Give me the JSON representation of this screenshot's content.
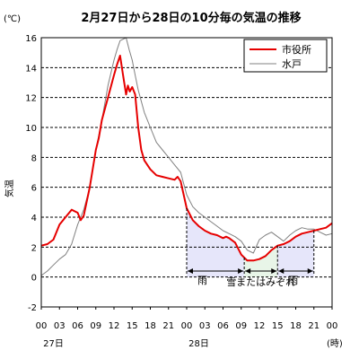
{
  "chart_data": {
    "type": "line",
    "title": "2月27日から28日の10分毎の気温の推移",
    "unit_label": "(℃)",
    "ylabel": "気温",
    "ylim": [
      -2,
      16
    ],
    "yticks": [
      -2,
      0,
      2,
      4,
      6,
      8,
      10,
      12,
      14,
      16
    ],
    "xlim": [
      0,
      48
    ],
    "xtick_values": [
      0,
      3,
      6,
      9,
      12,
      15,
      18,
      21,
      24,
      27,
      30,
      33,
      36,
      39,
      42,
      45,
      48
    ],
    "xtick_labels": [
      "00",
      "03",
      "06",
      "09",
      "12",
      "15",
      "18",
      "21",
      "00",
      "03",
      "06",
      "09",
      "12",
      "15",
      "18",
      "21",
      "00"
    ],
    "day_labels": [
      {
        "x": 2,
        "text": "27日"
      },
      {
        "x": 26,
        "text": "28日"
      }
    ],
    "x_unit_label": "(時)",
    "grid": "horizontal-dashed",
    "legend_position": "top-right",
    "series": [
      {
        "name": "市役所",
        "color": "#e60000",
        "x": [
          0,
          1,
          2,
          3,
          4,
          5,
          6,
          6.5,
          7,
          8,
          9,
          9.5,
          10,
          11,
          12,
          12.5,
          13,
          13.5,
          14,
          14.3,
          14.6,
          15,
          15.5,
          16,
          16.5,
          17,
          18,
          19,
          20,
          21,
          22,
          22.5,
          23,
          24,
          25,
          26,
          27,
          28,
          29,
          30,
          30.5,
          31,
          32,
          33,
          34,
          35,
          36,
          37,
          38,
          39,
          40,
          41,
          42,
          43,
          44,
          45,
          46,
          47,
          48
        ],
        "y": [
          2.1,
          2.2,
          2.5,
          3.5,
          4.0,
          4.5,
          4.3,
          3.8,
          4.1,
          6.0,
          8.5,
          9.3,
          10.5,
          12.0,
          13.5,
          14.2,
          14.8,
          13.5,
          12.2,
          12.8,
          12.4,
          12.7,
          12.2,
          10.0,
          8.5,
          7.8,
          7.2,
          6.8,
          6.7,
          6.6,
          6.5,
          6.7,
          6.4,
          4.6,
          3.8,
          3.4,
          3.1,
          2.9,
          2.8,
          2.6,
          2.7,
          2.6,
          2.3,
          1.5,
          1.1,
          1.1,
          1.2,
          1.4,
          1.8,
          2.1,
          2.2,
          2.4,
          2.7,
          2.9,
          3.0,
          3.1,
          3.2,
          3.3,
          3.6
        ]
      },
      {
        "name": "水戸",
        "color": "#808080",
        "x": [
          0,
          1,
          2,
          3,
          4,
          5,
          6,
          7,
          8,
          9,
          10,
          11,
          12,
          12.5,
          13,
          14,
          14.5,
          15,
          15.5,
          16,
          17,
          18,
          19,
          20,
          21,
          22,
          23,
          24,
          25,
          26,
          27,
          28,
          29,
          30,
          31,
          32,
          33,
          34,
          35,
          36,
          37,
          38,
          39,
          40,
          41,
          42,
          43,
          44,
          45,
          46,
          47,
          48
        ],
        "y": [
          0.1,
          0.4,
          0.8,
          1.2,
          1.5,
          2.2,
          3.5,
          4.5,
          6.0,
          8.5,
          10.5,
          12.8,
          14.5,
          15.2,
          15.8,
          16.0,
          15.2,
          14.5,
          13.5,
          12.5,
          11.0,
          10.0,
          9.0,
          8.5,
          8.0,
          7.5,
          7.0,
          5.5,
          4.7,
          4.3,
          4.0,
          3.7,
          3.4,
          3.1,
          2.9,
          2.7,
          2.4,
          1.8,
          1.6,
          2.5,
          2.8,
          3.0,
          2.7,
          2.4,
          2.8,
          3.1,
          3.3,
          3.2,
          3.2,
          3.0,
          2.8,
          2.9
        ]
      }
    ],
    "annotations": [
      {
        "label": "雨",
        "x_start": 24,
        "x_end": 33.5,
        "fill": "#e6e6fa"
      },
      {
        "label": "雪またはみぞれ",
        "x_start": 33.5,
        "x_end": 39,
        "fill": "#e8f5e8"
      },
      {
        "label": "雨",
        "x_start": 39,
        "x_end": 45,
        "fill": "#e6e6fa"
      }
    ]
  }
}
